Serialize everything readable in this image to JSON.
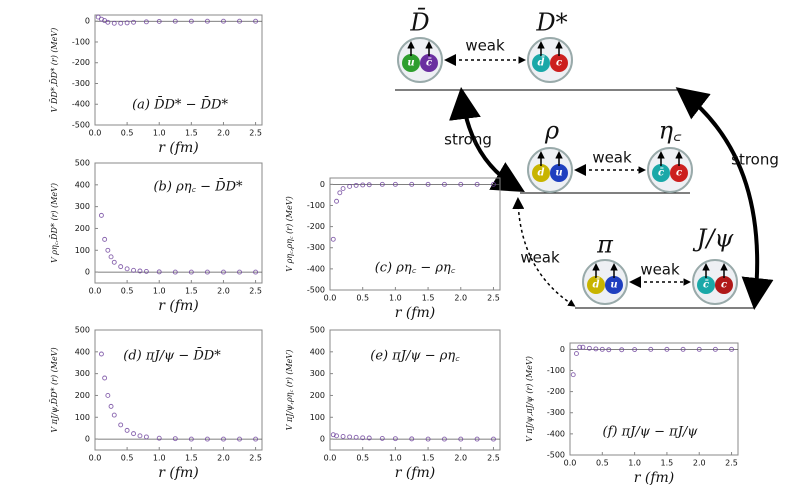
{
  "chart_data": [
    {
      "type": "scatter",
      "panel_label": "(a) D̄D* − D̄D*",
      "xlabel": "r  (fm)",
      "ylabel": "V D̄D*,D̄D* (r)  (MeV)",
      "color": "#6a3d9a",
      "x": [
        0.05,
        0.1,
        0.15,
        0.2,
        0.3,
        0.4,
        0.5,
        0.6,
        0.8,
        1.0,
        1.25,
        1.5,
        1.75,
        2.0,
        2.25,
        2.5
      ],
      "values": [
        20,
        10,
        3,
        -5,
        -10,
        -10,
        -8,
        -5,
        -3,
        -1,
        0,
        0,
        0,
        0,
        0,
        0
      ],
      "xlim": [
        0,
        2.6
      ],
      "ylim": [
        -500,
        30
      ],
      "xticks": [
        {
          "value": 0,
          "label": "0.0"
        },
        0.5,
        {
          "value": 1,
          "label": "1.0"
        },
        1.5,
        {
          "value": 2,
          "label": "2.0"
        },
        2.5
      ],
      "yticks": [
        0,
        -100,
        -200,
        -300,
        -400,
        -500
      ]
    },
    {
      "type": "scatter",
      "panel_label": "(b) ρη꜀ − D̄D*",
      "xlabel": "r  (fm)",
      "ylabel": "V ρη꜀,D̄D* (r)  (MeV)",
      "color": "#6a3d9a",
      "x": [
        0.1,
        0.15,
        0.2,
        0.25,
        0.3,
        0.4,
        0.5,
        0.6,
        0.7,
        0.8,
        1.0,
        1.25,
        1.5,
        1.75,
        2.0,
        2.25,
        2.5
      ],
      "values": [
        260,
        150,
        100,
        70,
        45,
        25,
        15,
        8,
        5,
        3,
        1,
        0,
        0,
        0,
        0,
        0,
        0
      ],
      "xlim": [
        0,
        2.6
      ],
      "ylim": [
        -50,
        500
      ],
      "xticks": [
        {
          "value": 0,
          "label": "0.0"
        },
        0.5,
        {
          "value": 1,
          "label": "1.0"
        },
        1.5,
        {
          "value": 2,
          "label": "2.0"
        },
        2.5
      ],
      "yticks": [
        0,
        100,
        200,
        300,
        400,
        500
      ]
    },
    {
      "type": "scatter",
      "panel_label": "(c) ρη꜀ − ρη꜀",
      "xlabel": "r  (fm)",
      "ylabel": "V ρη꜀,ρη꜀ (r)  (MeV)",
      "color": "#6a3d9a",
      "x": [
        0.05,
        0.1,
        0.15,
        0.2,
        0.3,
        0.4,
        0.5,
        0.6,
        0.8,
        1.0,
        1.25,
        1.5,
        1.75,
        2.0,
        2.25,
        2.5
      ],
      "values": [
        -260,
        -80,
        -40,
        -20,
        -10,
        -5,
        -3,
        -2,
        0,
        0,
        0,
        0,
        0,
        0,
        0,
        0
      ],
      "xlim": [
        0,
        2.6
      ],
      "ylim": [
        -500,
        30
      ],
      "xticks": [
        {
          "value": 0,
          "label": "0.0"
        },
        0.5,
        {
          "value": 1,
          "label": "1.0"
        },
        1.5,
        {
          "value": 2,
          "label": "2.0"
        },
        2.5
      ],
      "yticks": [
        0,
        -100,
        -200,
        -300,
        -400,
        -500
      ]
    },
    {
      "type": "scatter",
      "panel_label": "(d) πJ/ψ − D̄D*",
      "xlabel": "r  (fm)",
      "ylabel": "V πJ/ψ,D̄D* (r)  (MeV)",
      "color": "#6a3d9a",
      "x": [
        0.1,
        0.15,
        0.2,
        0.25,
        0.3,
        0.4,
        0.5,
        0.6,
        0.7,
        0.8,
        1.0,
        1.25,
        1.5,
        1.75,
        2.0,
        2.25,
        2.5
      ],
      "values": [
        390,
        280,
        200,
        150,
        110,
        65,
        40,
        25,
        15,
        10,
        4,
        2,
        0,
        0,
        0,
        0,
        0
      ],
      "xlim": [
        0,
        2.6
      ],
      "ylim": [
        -50,
        500
      ],
      "xticks": [
        {
          "value": 0,
          "label": "0.0"
        },
        0.5,
        {
          "value": 1,
          "label": "1.0"
        },
        1.5,
        {
          "value": 2,
          "label": "2.0"
        },
        2.5
      ],
      "yticks": [
        0,
        100,
        200,
        300,
        400,
        500
      ]
    },
    {
      "type": "scatter",
      "panel_label": "(e) πJ/ψ − ρη꜀",
      "xlabel": "r  (fm)",
      "ylabel": "V πJ/ψ,ρη꜀ (r)  (MeV)",
      "color": "#6a3d9a",
      "x": [
        0.05,
        0.1,
        0.2,
        0.3,
        0.4,
        0.5,
        0.6,
        0.8,
        1.0,
        1.25,
        1.5,
        1.75,
        2.0,
        2.25,
        2.5
      ],
      "values": [
        20,
        15,
        12,
        10,
        8,
        6,
        5,
        3,
        2,
        1,
        0,
        0,
        0,
        0,
        0
      ],
      "xlim": [
        0,
        2.6
      ],
      "ylim": [
        -50,
        500
      ],
      "xticks": [
        {
          "value": 0,
          "label": "0.0"
        },
        0.5,
        {
          "value": 1,
          "label": "1.0"
        },
        1.5,
        {
          "value": 2,
          "label": "2.0"
        },
        2.5
      ],
      "yticks": [
        0,
        100,
        200,
        300,
        400,
        500
      ]
    },
    {
      "type": "scatter",
      "panel_label": "(f) πJ/ψ − πJ/ψ",
      "xlabel": "r  (fm)",
      "ylabel": "V πJ/ψ,πJ/ψ (r)  (MeV)",
      "color": "#6a3d9a",
      "x": [
        0.05,
        0.1,
        0.15,
        0.2,
        0.3,
        0.4,
        0.5,
        0.6,
        0.8,
        1.0,
        1.25,
        1.5,
        1.75,
        2.0,
        2.25,
        2.5
      ],
      "values": [
        -120,
        -20,
        10,
        10,
        5,
        2,
        0,
        -2,
        -2,
        -1,
        0,
        0,
        0,
        0,
        0,
        0
      ],
      "xlim": [
        0,
        2.6
      ],
      "ylim": [
        -500,
        30
      ],
      "xticks": [
        {
          "value": 0,
          "label": "0.0"
        },
        0.5,
        {
          "value": 1,
          "label": "1.0"
        },
        1.5,
        {
          "value": 2,
          "label": "2.0"
        },
        2.5
      ],
      "yticks": [
        0,
        -100,
        -200,
        -300,
        -400,
        -500
      ]
    }
  ],
  "diagram": {
    "labels": [
      "D̄",
      "D*",
      "ρ",
      "η꜀",
      "π",
      "J/ψ"
    ],
    "arrows": [
      "weak",
      "weak",
      "weak",
      "strong",
      "strong",
      "weak"
    ],
    "quarks": [
      "u",
      "c̄",
      "d̄",
      "c",
      "d",
      "u",
      "c̄",
      "c",
      "d̄",
      "u",
      "c̄",
      "c"
    ]
  }
}
